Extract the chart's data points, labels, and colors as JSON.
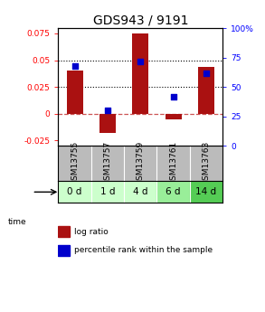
{
  "title": "GDS943 / 9191",
  "samples": [
    "GSM13755",
    "GSM13757",
    "GSM13759",
    "GSM13761",
    "GSM13763"
  ],
  "time_labels": [
    "0 d",
    "1 d",
    "4 d",
    "6 d",
    "14 d"
  ],
  "log_ratios": [
    0.04,
    -0.018,
    0.075,
    -0.005,
    0.044
  ],
  "percentile_ranks": [
    0.68,
    0.3,
    0.72,
    0.42,
    0.62
  ],
  "ylim_left": [
    -0.03,
    0.08
  ],
  "ylim_right": [
    0,
    1.0
  ],
  "yticks_left": [
    -0.025,
    0,
    0.025,
    0.05,
    0.075
  ],
  "ytick_labels_left": [
    "-0.025",
    "0",
    "0.025",
    "0.05",
    "0.075"
  ],
  "yticks_right": [
    0,
    0.25,
    0.5,
    0.75,
    1.0
  ],
  "ytick_labels_right": [
    "0",
    "25",
    "50",
    "75",
    "100%"
  ],
  "hlines_dotted": [
    0.025,
    0.05
  ],
  "hline_dashed": 0,
  "bar_color": "#aa1111",
  "scatter_color": "#0000cc",
  "bar_width": 0.5,
  "time_row_colors": [
    "#ccffcc",
    "#ccffcc",
    "#ccffcc",
    "#99ee99",
    "#55cc55"
  ],
  "sample_row_color": "#bbbbbb",
  "legend_bar_label": "log ratio",
  "legend_scatter_label": "percentile rank within the sample",
  "title_fontsize": 10,
  "tick_fontsize": 6.5,
  "time_label_fontsize": 7.5,
  "sample_label_fontsize": 6.5
}
